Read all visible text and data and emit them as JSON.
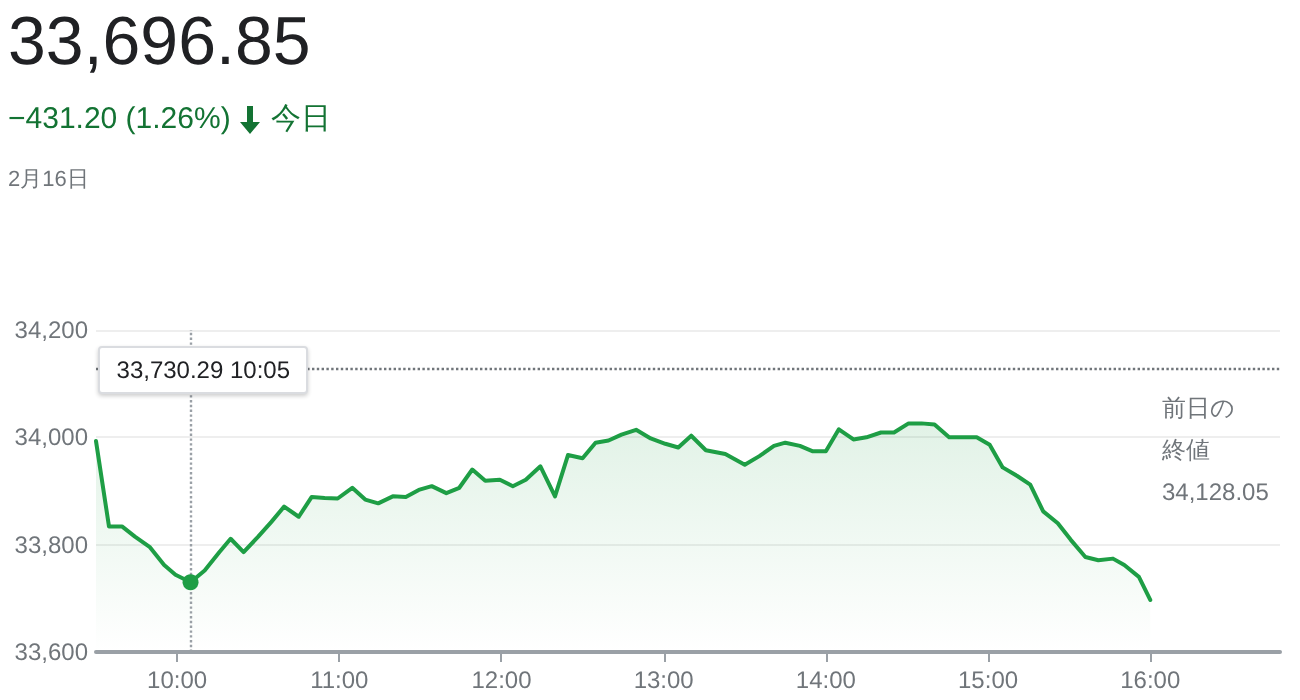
{
  "chart_data": {
    "type": "area",
    "title": "33,696.85",
    "subtitle": "−431.20 (1.26%)",
    "annotations": [
      "今日",
      "2月16日",
      "33,730.29 10:05"
    ],
    "x": [
      9.5,
      9.58,
      9.66,
      9.74,
      9.83,
      9.92,
      9.99,
      10.083,
      10.17,
      10.26,
      10.33,
      10.41,
      10.5,
      10.58,
      10.66,
      10.75,
      10.83,
      10.91,
      10.99,
      11.08,
      11.16,
      11.24,
      11.33,
      11.41,
      11.49,
      11.57,
      11.66,
      11.74,
      11.82,
      11.9,
      11.99,
      12.07,
      12.15,
      12.24,
      12.33,
      12.41,
      12.5,
      12.58,
      12.66,
      12.74,
      12.83,
      12.92,
      13.01,
      13.09,
      13.17,
      13.26,
      13.38,
      13.5,
      13.59,
      13.68,
      13.75,
      13.84,
      13.92,
      14.0,
      14.08,
      14.17,
      14.25,
      14.34,
      14.42,
      14.51,
      14.59,
      14.67,
      14.76,
      14.84,
      14.93,
      15.01,
      15.09,
      15.18,
      15.26,
      15.34,
      15.43,
      15.51,
      15.6,
      15.68,
      15.77,
      15.84,
      15.93,
      16.0
    ],
    "series": [
      {
        "color": "#1e9e45",
        "values": [
          33993,
          33834,
          33834,
          33815,
          33796,
          33762,
          33744,
          33730,
          33752,
          33786,
          33811,
          33786,
          33815,
          33842,
          33871,
          33852,
          33889,
          33887,
          33886,
          33906,
          33884,
          33877,
          33890,
          33889,
          33902,
          33909,
          33896,
          33906,
          33940,
          33919,
          33921,
          33909,
          33921,
          33946,
          33890,
          33967,
          33961,
          33990,
          33994,
          34005,
          34014,
          33998,
          33988,
          33981,
          34003,
          33976,
          33969,
          33949,
          33965,
          33984,
          33990,
          33984,
          33974,
          33974,
          34015,
          33996,
          34000,
          34009,
          34009,
          34026,
          34026,
          34024,
          34000,
          34000,
          34000,
          33986,
          33944,
          33928,
          33912,
          33862,
          33840,
          33809,
          33777,
          33771,
          33774,
          33762,
          33740,
          33697
        ]
      }
    ],
    "xlim": [
      9.5,
      16.8
    ],
    "xticks": [
      {
        "value": 10,
        "label": "10:00"
      },
      {
        "value": 11,
        "label": "11:00"
      },
      {
        "value": 12,
        "label": "12:00"
      },
      {
        "value": 13,
        "label": "13:00"
      },
      {
        "value": 14,
        "label": "14:00"
      },
      {
        "value": 15,
        "label": "15:00"
      },
      {
        "value": 16,
        "label": "16:00"
      }
    ],
    "ylim": [
      33600,
      34200
    ],
    "yticks": [
      {
        "value": 33600,
        "label": "33,600"
      },
      {
        "value": 33800,
        "label": "33,800"
      },
      {
        "value": 34000,
        "label": "34,000"
      },
      {
        "value": 34200,
        "label": "34,200"
      }
    ],
    "ref_lines": [
      {
        "axis": "y",
        "value": 34128.05,
        "label": "前日の終値\n34,128.05",
        "line_style": "dotted",
        "color": "#70757a"
      },
      {
        "axis": "x",
        "value": 10.083,
        "line_style": "dotted",
        "color": "#9aa0a6"
      }
    ],
    "grid": "y",
    "marker": "none",
    "line_style": "solid"
  }
}
